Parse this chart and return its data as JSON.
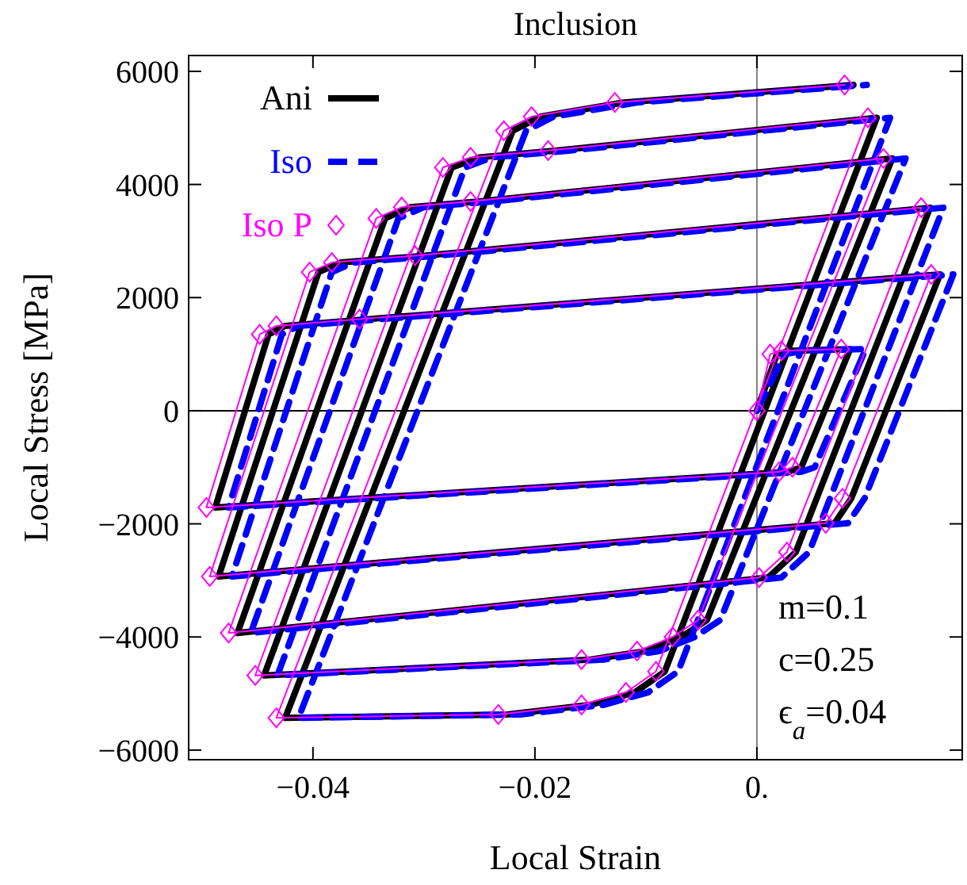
{
  "chart_data": {
    "type": "line",
    "title": "Inclusion",
    "xlabel": "Local Strain",
    "ylabel": "Local Stress [MPa]",
    "xlim": [
      -0.0512,
      0.0185
    ],
    "ylim": [
      -6170,
      6280
    ],
    "xticks": [
      {
        "value": -0.04,
        "label": "−0.04"
      },
      {
        "value": -0.02,
        "label": "−0.02"
      },
      {
        "value": 0,
        "label": "0."
      }
    ],
    "yticks": [
      {
        "value": -6000,
        "label": "−6000"
      },
      {
        "value": -4000,
        "label": "−4000"
      },
      {
        "value": -2000,
        "label": "−2000"
      },
      0,
      2000,
      4000,
      6000
    ],
    "grid": false,
    "legend": "top left",
    "ref_lines": [
      {
        "axis": "x",
        "value": 0,
        "color": "#808080"
      },
      {
        "axis": "y",
        "value": 0,
        "color": "#000000"
      }
    ],
    "annotations": [
      "m=0.1",
      "c=0.25",
      "ϵ$_{a}$=0.04"
    ],
    "series": [
      {
        "name": "Ani",
        "color": "#000000",
        "line_style": "solid",
        "marker": "none",
        "x": [
          0,
          0.0018,
          0.003,
          0.0084,
          0.004,
          0.0028,
          -0.0488,
          -0.044,
          -0.0425,
          -0.035,
          0.0165,
          0.0085,
          0.007,
          -0.0485,
          -0.0395,
          -0.0375,
          -0.03,
          0.0156,
          0.0035,
          0.001,
          -0.0468,
          -0.0335,
          -0.0312,
          -0.025,
          0.0122,
          -0.0045,
          -0.0068,
          -0.01,
          -0.015,
          -0.0444,
          -0.0275,
          -0.025,
          -0.018,
          0.0108,
          -0.0083,
          -0.011,
          -0.015,
          -0.0225,
          -0.0425,
          -0.022,
          -0.0195,
          -0.012,
          0.0087
        ],
        "values": [
          0,
          1000,
          1060,
          1090,
          -1000,
          -1080,
          -1710,
          1350,
          1500,
          1620,
          2410,
          -1550,
          -1990,
          -2930,
          2450,
          2620,
          2740,
          3590,
          -2500,
          -2950,
          -3930,
          3400,
          3600,
          3700,
          4460,
          -3700,
          -4000,
          -4250,
          -4400,
          -4680,
          4300,
          4480,
          4600,
          5180,
          -4610,
          -4980,
          -5200,
          -5370,
          -5430,
          4950,
          5200,
          5450,
          5760
        ]
      },
      {
        "name": "Iso",
        "color": "#0000ff",
        "line_style": "dashed",
        "marker": "none",
        "x": [
          0,
          0.0025,
          0.0042,
          0.0098,
          0.0052,
          0.004,
          -0.0476,
          -0.0428,
          -0.0413,
          -0.0338,
          0.0177,
          0.0097,
          0.0082,
          -0.0473,
          -0.0383,
          -0.0363,
          -0.0288,
          0.0168,
          0.0047,
          0.0022,
          -0.0456,
          -0.0323,
          -0.03,
          -0.0238,
          0.0134,
          -0.0033,
          -0.0056,
          -0.0088,
          -0.0138,
          -0.0432,
          -0.0263,
          -0.0238,
          -0.0168,
          0.012,
          -0.0071,
          -0.0098,
          -0.0138,
          -0.0213,
          -0.0413,
          -0.0208,
          -0.0183,
          -0.0108,
          0.0099
        ],
        "values": [
          0,
          1000,
          1060,
          1090,
          -1000,
          -1080,
          -1710,
          1350,
          1500,
          1620,
          2410,
          -1550,
          -1990,
          -2930,
          2450,
          2620,
          2740,
          3590,
          -2500,
          -2950,
          -3930,
          3400,
          3600,
          3700,
          4460,
          -3700,
          -4000,
          -4250,
          -4400,
          -4680,
          4300,
          4480,
          4600,
          5180,
          -4610,
          -4980,
          -5200,
          -5370,
          -5430,
          4950,
          5200,
          5450,
          5760
        ]
      },
      {
        "name": "Iso P",
        "color": "#ff00ff",
        "line_style": "solid",
        "marker": "diamond",
        "x": [
          0,
          0.0012,
          0.0022,
          0.0076,
          0.0032,
          0.002,
          -0.0496,
          -0.0448,
          -0.0433,
          -0.0358,
          0.0157,
          0.0077,
          0.0062,
          -0.0493,
          -0.0403,
          -0.0383,
          -0.0308,
          0.0148,
          0.0027,
          0.0002,
          -0.0476,
          -0.0343,
          -0.032,
          -0.0258,
          0.0114,
          -0.0053,
          -0.0076,
          -0.0108,
          -0.0158,
          -0.0452,
          -0.0283,
          -0.0258,
          -0.0188,
          0.01,
          -0.0091,
          -0.0118,
          -0.0158,
          -0.0233,
          -0.0433,
          -0.0228,
          -0.0203,
          -0.0128,
          0.0079
        ],
        "values": [
          0,
          1000,
          1060,
          1090,
          -1000,
          -1080,
          -1710,
          1350,
          1500,
          1620,
          2410,
          -1550,
          -1990,
          -2930,
          2450,
          2620,
          2740,
          3590,
          -2500,
          -2950,
          -3930,
          3400,
          3600,
          3700,
          4460,
          -3700,
          -4000,
          -4250,
          -4400,
          -4680,
          4300,
          4480,
          4600,
          5180,
          -4610,
          -4980,
          -5200,
          -5370,
          -5430,
          4950,
          5200,
          5450,
          5760
        ]
      }
    ]
  }
}
